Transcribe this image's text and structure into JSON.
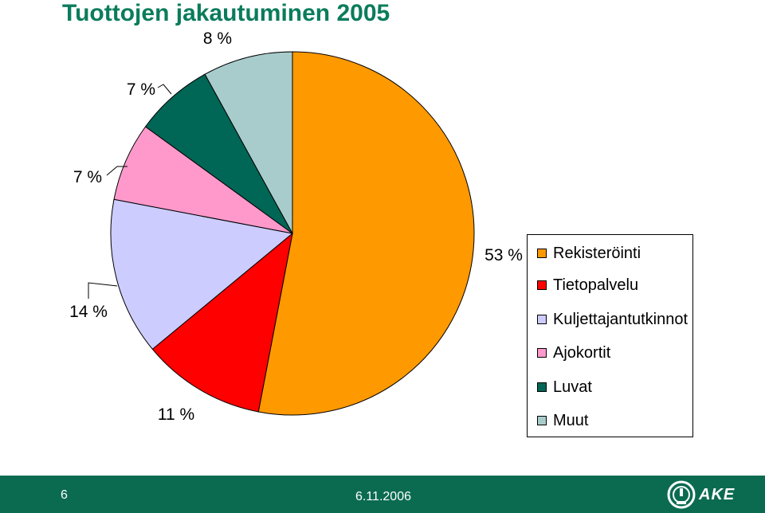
{
  "chart_data": {
    "type": "pie",
    "title": "Tuottojen jakautuminen 2005",
    "categories": [
      "Rekisteröinti",
      "Tietopalvelu",
      "Kuljettajantutkinnot",
      "Ajokortit",
      "Luvat",
      "Muut"
    ],
    "values": [
      53,
      11,
      14,
      7,
      7,
      8
    ],
    "data_labels": [
      "53 %",
      "11 %",
      "14 %",
      "7 %",
      "7 %",
      "8 %"
    ],
    "colors": [
      "#ff9900",
      "#ff0000",
      "#ccccff",
      "#ff99cc",
      "#006655",
      "#a8cccc"
    ],
    "start_angle": "12 o'clock",
    "direction": "clockwise",
    "legend_position": "right"
  },
  "footer": {
    "page_number": "6",
    "date": "6.11.2006",
    "logo_text": "AKE",
    "logo_icon": "speedometer-icon",
    "background": "#0b6b50"
  }
}
